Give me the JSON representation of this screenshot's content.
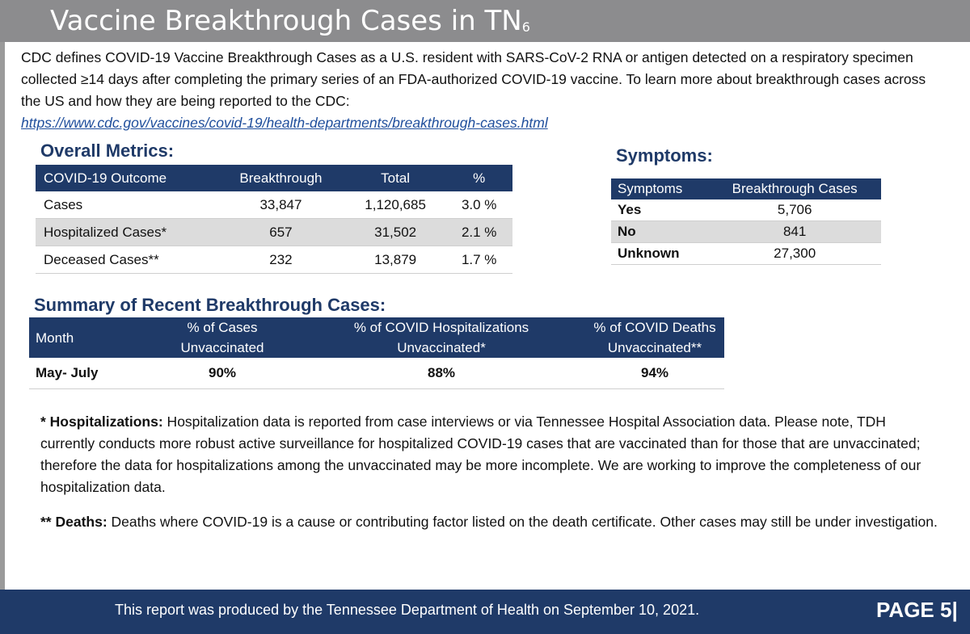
{
  "header": {
    "title": "Vaccine Breakthrough Cases in TN",
    "title_sub": "6"
  },
  "intro": {
    "text": "CDC defines COVID-19 Vaccine Breakthrough Cases as a U.S. resident with SARS-CoV-2 RNA or antigen detected on a respiratory specimen collected ≥14 days after completing the primary series of an FDA-authorized COVID-19 vaccine. To learn more about breakthrough cases across the US and how they are being reported to the CDC:",
    "link": "https://www.cdc.gov/vaccines/covid-19/health-departments/breakthrough-cases.html"
  },
  "metrics": {
    "title": "Overall Metrics:",
    "headers": [
      "COVID-19 Outcome",
      "Breakthrough",
      "Total",
      "%"
    ],
    "rows": [
      [
        "Cases",
        "33,847",
        "1,120,685",
        "3.0 %"
      ],
      [
        "Hospitalized Cases*",
        "657",
        "31,502",
        "2.1 %"
      ],
      [
        "Deceased Cases**",
        "232",
        "13,879",
        "1.7 %"
      ]
    ]
  },
  "symptoms": {
    "title": "Symptoms:",
    "headers": [
      "Symptoms",
      "Breakthrough Cases"
    ],
    "rows": [
      [
        "Yes",
        "5,706"
      ],
      [
        "No",
        "841"
      ],
      [
        "Unknown",
        "27,300"
      ]
    ]
  },
  "summary": {
    "title": "Summary of Recent Breakthrough Cases:",
    "headers": {
      "month": "Month",
      "cases_l1": "% of Cases",
      "cases_l2": "Unvaccinated",
      "hosp_l1": "% of COVID Hospitalizations",
      "hosp_l2": "Unvaccinated*",
      "deaths_l1": "% of COVID Deaths",
      "deaths_l2": "Unvaccinated**"
    },
    "row": [
      "May- July",
      "90%",
      "88%",
      "94%"
    ]
  },
  "notes": {
    "hosp_label": "* Hospitalizations:",
    "hosp_text": " Hospitalization data is reported from case interviews or via Tennessee Hospital Association data. Please note, TDH currently conducts more robust active surveillance for hospitalized COVID-19 cases that are vaccinated than for those that are unvaccinated; therefore the data for hospitalizations among the unvaccinated may be more incomplete. We are working to improve the completeness of our hospitalization data.",
    "deaths_label": "** Deaths:",
    "deaths_text": " Deaths where COVID-19 is a cause or contributing factor listed on the death certificate. Other cases may still be under investigation."
  },
  "footer": {
    "text": "This report was produced by the Tennessee Department of Health on September 10, 2021.",
    "page": "PAGE 5|"
  },
  "colors": {
    "navy": "#1f3a68",
    "header_gray": "#8c8c8e",
    "row_shade": "#dcdcdc"
  }
}
